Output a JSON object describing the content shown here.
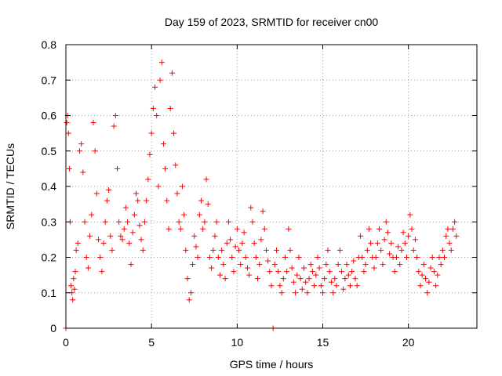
{
  "chart_data": {
    "type": "scatter",
    "title": "Day 159 of 2023, SRMTID for receiver cn00",
    "xlabel": "GPS time / hours",
    "ylabel": "SRMTID / TECUs",
    "xlim": [
      0,
      24
    ],
    "ylim": [
      0,
      0.8
    ],
    "xticks": [
      0,
      5,
      10,
      15,
      20
    ],
    "yticks": [
      0,
      0.1,
      0.2,
      0.3,
      0.4,
      0.5,
      0.6,
      0.7,
      0.8
    ],
    "xtick_labels": [
      "0",
      "5",
      "10",
      "15",
      "20"
    ],
    "ytick_labels": [
      "0",
      "0.1",
      "0.2",
      "0.3",
      "0.4",
      "0.5",
      "0.6",
      "0.7",
      "0.8"
    ],
    "grid": true,
    "marker": "+",
    "marker_color": "#ff0000",
    "series": [
      {
        "name": "cn00",
        "points": [
          [
            0.0,
            0.0
          ],
          [
            0.05,
            0.58
          ],
          [
            0.1,
            0.6
          ],
          [
            0.15,
            0.55
          ],
          [
            0.2,
            0.45
          ],
          [
            0.25,
            0.3
          ],
          [
            0.3,
            0.12
          ],
          [
            0.35,
            0.1
          ],
          [
            0.4,
            0.08
          ],
          [
            0.45,
            0.14
          ],
          [
            0.5,
            0.11
          ],
          [
            0.55,
            0.16
          ],
          [
            0.6,
            0.22
          ],
          [
            0.7,
            0.24
          ],
          [
            0.8,
            0.5
          ],
          [
            0.9,
            0.52
          ],
          [
            1.0,
            0.44
          ],
          [
            1.1,
            0.3
          ],
          [
            1.2,
            0.2
          ],
          [
            1.3,
            0.17
          ],
          [
            1.4,
            0.26
          ],
          [
            1.5,
            0.32
          ],
          [
            1.6,
            0.58
          ],
          [
            1.7,
            0.5
          ],
          [
            1.8,
            0.38
          ],
          [
            1.9,
            0.25
          ],
          [
            2.0,
            0.2
          ],
          [
            2.1,
            0.16
          ],
          [
            2.2,
            0.24
          ],
          [
            2.3,
            0.3
          ],
          [
            2.4,
            0.36
          ],
          [
            2.5,
            0.39
          ],
          [
            2.6,
            0.26
          ],
          [
            2.7,
            0.22
          ],
          [
            2.8,
            0.57
          ],
          [
            2.9,
            0.6
          ],
          [
            3.0,
            0.45
          ],
          [
            3.1,
            0.3
          ],
          [
            3.2,
            0.26
          ],
          [
            3.3,
            0.25
          ],
          [
            3.4,
            0.28
          ],
          [
            3.5,
            0.34
          ],
          [
            3.6,
            0.3
          ],
          [
            3.7,
            0.24
          ],
          [
            3.8,
            0.18
          ],
          [
            3.9,
            0.27
          ],
          [
            4.0,
            0.32
          ],
          [
            4.1,
            0.38
          ],
          [
            4.2,
            0.36
          ],
          [
            4.3,
            0.29
          ],
          [
            4.4,
            0.25
          ],
          [
            4.5,
            0.22
          ],
          [
            4.6,
            0.3
          ],
          [
            4.7,
            0.36
          ],
          [
            4.8,
            0.42
          ],
          [
            4.9,
            0.49
          ],
          [
            5.0,
            0.55
          ],
          [
            5.1,
            0.62
          ],
          [
            5.2,
            0.68
          ],
          [
            5.3,
            0.6
          ],
          [
            5.4,
            0.4
          ],
          [
            5.5,
            0.7
          ],
          [
            5.6,
            0.75
          ],
          [
            5.7,
            0.52
          ],
          [
            5.8,
            0.45
          ],
          [
            5.9,
            0.36
          ],
          [
            6.0,
            0.28
          ],
          [
            6.1,
            0.62
          ],
          [
            6.2,
            0.72
          ],
          [
            6.3,
            0.55
          ],
          [
            6.4,
            0.46
          ],
          [
            6.5,
            0.38
          ],
          [
            6.6,
            0.3
          ],
          [
            6.7,
            0.28
          ],
          [
            6.8,
            0.4
          ],
          [
            6.9,
            0.32
          ],
          [
            7.0,
            0.22
          ],
          [
            7.1,
            0.14
          ],
          [
            7.2,
            0.08
          ],
          [
            7.3,
            0.1
          ],
          [
            7.4,
            0.18
          ],
          [
            7.5,
            0.26
          ],
          [
            7.6,
            0.23
          ],
          [
            7.7,
            0.2
          ],
          [
            7.8,
            0.32
          ],
          [
            7.9,
            0.36
          ],
          [
            8.0,
            0.28
          ],
          [
            8.1,
            0.3
          ],
          [
            8.2,
            0.42
          ],
          [
            8.3,
            0.35
          ],
          [
            8.4,
            0.2
          ],
          [
            8.5,
            0.17
          ],
          [
            8.6,
            0.22
          ],
          [
            8.7,
            0.26
          ],
          [
            8.8,
            0.3
          ],
          [
            8.9,
            0.2
          ],
          [
            9.0,
            0.15
          ],
          [
            9.1,
            0.22
          ],
          [
            9.2,
            0.18
          ],
          [
            9.3,
            0.14
          ],
          [
            9.4,
            0.24
          ],
          [
            9.5,
            0.3
          ],
          [
            9.6,
            0.25
          ],
          [
            9.7,
            0.2
          ],
          [
            9.8,
            0.16
          ],
          [
            9.9,
            0.23
          ],
          [
            10.0,
            0.28
          ],
          [
            10.1,
            0.22
          ],
          [
            10.2,
            0.18
          ],
          [
            10.3,
            0.24
          ],
          [
            10.4,
            0.27
          ],
          [
            10.5,
            0.2
          ],
          [
            10.6,
            0.17
          ],
          [
            10.7,
            0.15
          ],
          [
            10.8,
            0.34
          ],
          [
            10.9,
            0.3
          ],
          [
            11.0,
            0.24
          ],
          [
            11.1,
            0.2
          ],
          [
            11.2,
            0.14
          ],
          [
            11.3,
            0.18
          ],
          [
            11.4,
            0.25
          ],
          [
            11.5,
            0.33
          ],
          [
            11.6,
            0.28
          ],
          [
            11.7,
            0.22
          ],
          [
            11.8,
            0.19
          ],
          [
            11.9,
            0.16
          ],
          [
            12.0,
            0.12
          ],
          [
            12.1,
            0.0
          ],
          [
            12.2,
            0.18
          ],
          [
            12.3,
            0.22
          ],
          [
            12.4,
            0.16
          ],
          [
            12.5,
            0.12
          ],
          [
            12.6,
            0.1
          ],
          [
            12.7,
            0.14
          ],
          [
            12.8,
            0.2
          ],
          [
            12.9,
            0.16
          ],
          [
            13.0,
            0.28
          ],
          [
            13.1,
            0.22
          ],
          [
            13.2,
            0.17
          ],
          [
            13.3,
            0.13
          ],
          [
            13.4,
            0.1
          ],
          [
            13.5,
            0.15
          ],
          [
            13.6,
            0.2
          ],
          [
            13.7,
            0.14
          ],
          [
            13.8,
            0.11
          ],
          [
            13.9,
            0.17
          ],
          [
            14.0,
            0.13
          ],
          [
            14.1,
            0.1
          ],
          [
            14.2,
            0.14
          ],
          [
            14.3,
            0.18
          ],
          [
            14.4,
            0.16
          ],
          [
            14.5,
            0.12
          ],
          [
            14.6,
            0.15
          ],
          [
            14.7,
            0.2
          ],
          [
            14.8,
            0.17
          ],
          [
            14.9,
            0.12
          ],
          [
            15.0,
            0.1
          ],
          [
            15.1,
            0.14
          ],
          [
            15.2,
            0.18
          ],
          [
            15.3,
            0.22
          ],
          [
            15.4,
            0.16
          ],
          [
            15.5,
            0.13
          ],
          [
            15.6,
            0.1
          ],
          [
            15.7,
            0.14
          ],
          [
            15.8,
            0.12
          ],
          [
            15.9,
            0.18
          ],
          [
            16.0,
            0.22
          ],
          [
            16.1,
            0.16
          ],
          [
            16.2,
            0.11
          ],
          [
            16.3,
            0.14
          ],
          [
            16.4,
            0.18
          ],
          [
            16.5,
            0.15
          ],
          [
            16.6,
            0.12
          ],
          [
            16.7,
            0.16
          ],
          [
            16.8,
            0.19
          ],
          [
            16.9,
            0.14
          ],
          [
            17.0,
            0.12
          ],
          [
            17.1,
            0.2
          ],
          [
            17.2,
            0.26
          ],
          [
            17.3,
            0.2
          ],
          [
            17.4,
            0.16
          ],
          [
            17.5,
            0.18
          ],
          [
            17.6,
            0.22
          ],
          [
            17.7,
            0.28
          ],
          [
            17.8,
            0.24
          ],
          [
            17.9,
            0.2
          ],
          [
            18.0,
            0.17
          ],
          [
            18.1,
            0.2
          ],
          [
            18.2,
            0.24
          ],
          [
            18.3,
            0.28
          ],
          [
            18.4,
            0.22
          ],
          [
            18.5,
            0.18
          ],
          [
            18.6,
            0.25
          ],
          [
            18.7,
            0.3
          ],
          [
            18.8,
            0.27
          ],
          [
            18.9,
            0.21
          ],
          [
            19.0,
            0.24
          ],
          [
            19.1,
            0.2
          ],
          [
            19.2,
            0.16
          ],
          [
            19.3,
            0.2
          ],
          [
            19.4,
            0.23
          ],
          [
            19.5,
            0.18
          ],
          [
            19.6,
            0.22
          ],
          [
            19.7,
            0.27
          ],
          [
            19.8,
            0.24
          ],
          [
            19.9,
            0.2
          ],
          [
            20.0,
            0.26
          ],
          [
            20.1,
            0.32
          ],
          [
            20.2,
            0.28
          ],
          [
            20.3,
            0.22
          ],
          [
            20.4,
            0.25
          ],
          [
            20.5,
            0.2
          ],
          [
            20.6,
            0.16
          ],
          [
            20.7,
            0.12
          ],
          [
            20.8,
            0.15
          ],
          [
            20.9,
            0.18
          ],
          [
            21.0,
            0.14
          ],
          [
            21.1,
            0.1
          ],
          [
            21.2,
            0.13
          ],
          [
            21.3,
            0.17
          ],
          [
            21.4,
            0.2
          ],
          [
            21.5,
            0.16
          ],
          [
            21.6,
            0.12
          ],
          [
            21.7,
            0.15
          ],
          [
            21.8,
            0.2
          ],
          [
            21.9,
            0.18
          ],
          [
            22.0,
            0.22
          ],
          [
            22.1,
            0.2
          ],
          [
            22.2,
            0.26
          ],
          [
            22.3,
            0.28
          ],
          [
            22.4,
            0.24
          ],
          [
            22.5,
            0.22
          ],
          [
            22.6,
            0.28
          ],
          [
            22.7,
            0.3
          ],
          [
            22.8,
            0.26
          ]
        ]
      }
    ]
  }
}
